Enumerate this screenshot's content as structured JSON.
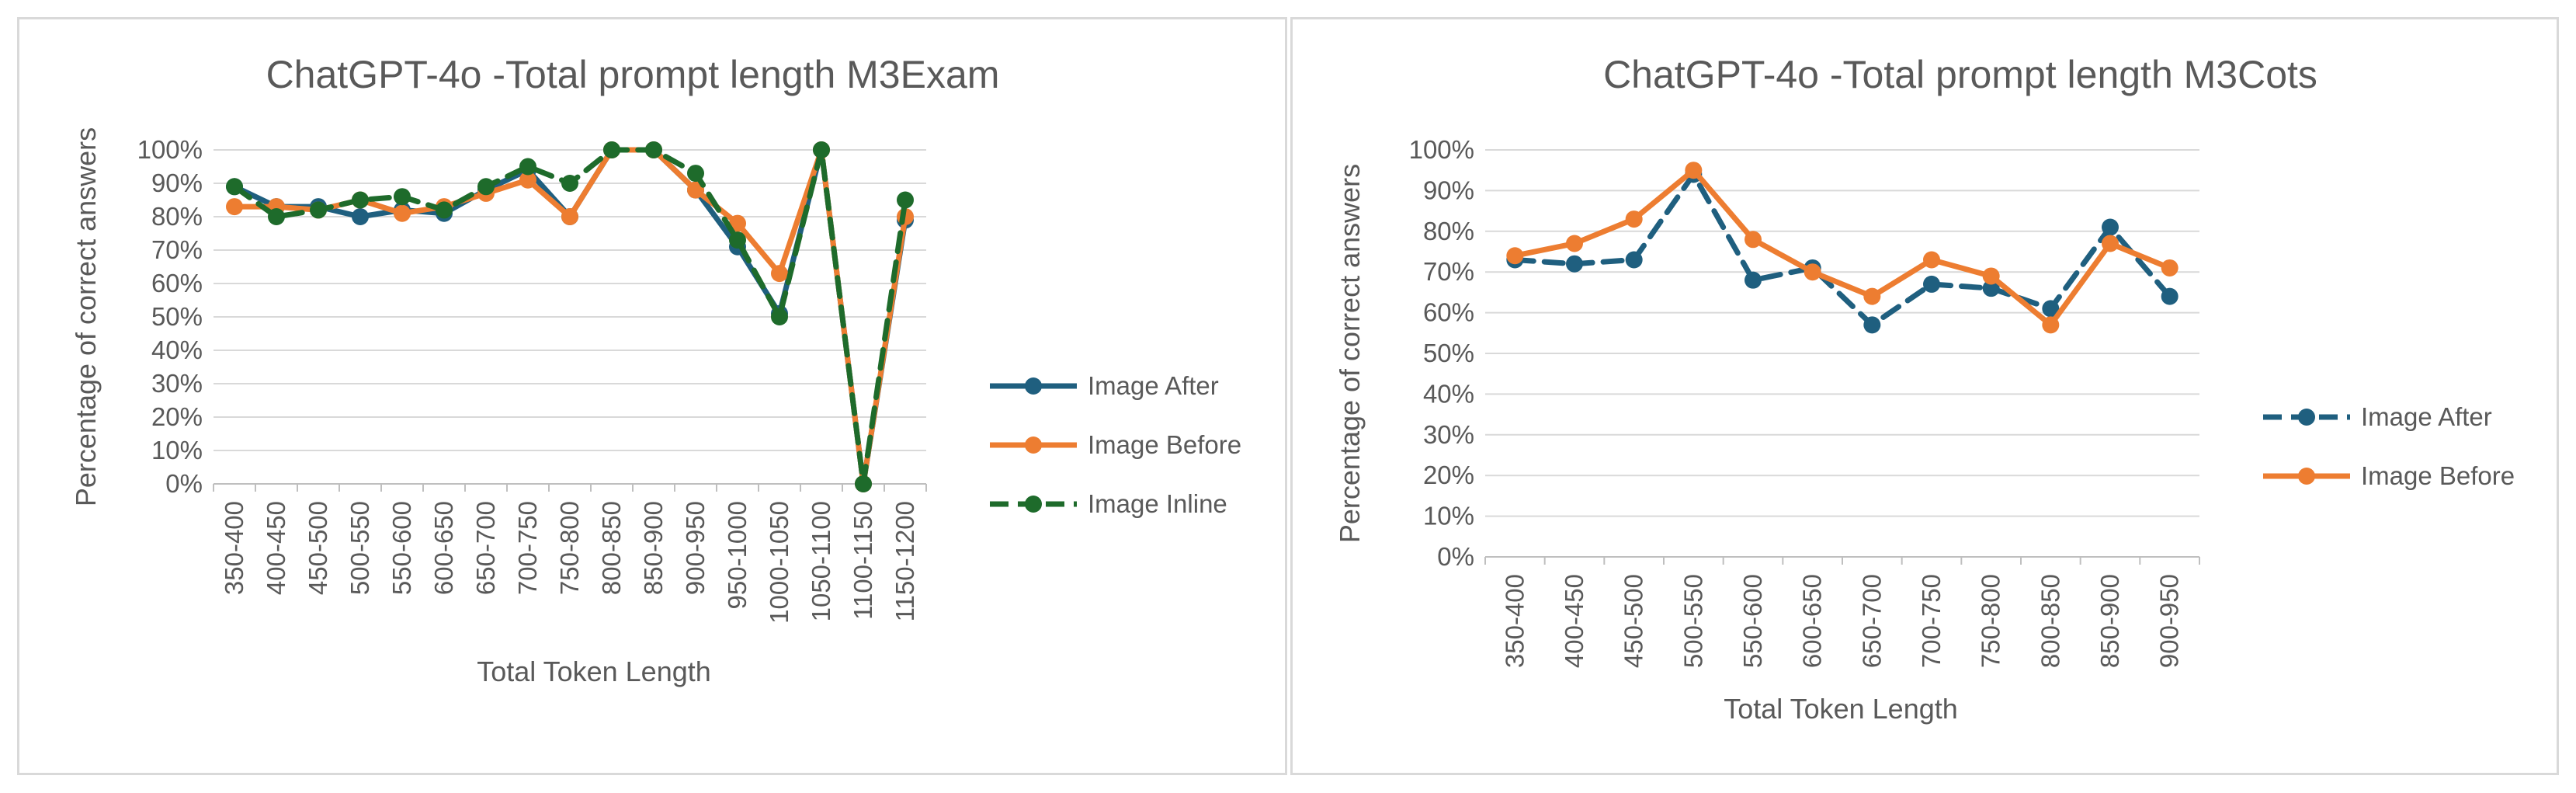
{
  "chart_data": [
    {
      "type": "line",
      "title": "ChatGPT-4o -Total prompt length M3Exam",
      "xlabel": "Total Token Length",
      "ylabel": "Percentage of correct answers",
      "categories": [
        "350-400",
        "400-450",
        "450-500",
        "500-550",
        "550-600",
        "600-650",
        "650-700",
        "700-750",
        "750-800",
        "800-850",
        "850-900",
        "900-950",
        "950-1000",
        "1000-1050",
        "1050-1100",
        "1100-1150",
        "1150-1200"
      ],
      "ylim": [
        0,
        100
      ],
      "yticks": [
        "0%",
        "10%",
        "20%",
        "30%",
        "40%",
        "50%",
        "60%",
        "70%",
        "80%",
        "90%",
        "100%"
      ],
      "grid": true,
      "legend_position": "right",
      "series": [
        {
          "name": "Image After",
          "color": "#1f5f7f",
          "dash": false,
          "values": [
            89,
            83,
            83,
            80,
            82,
            81,
            88,
            94,
            80,
            100,
            100,
            88,
            71,
            51,
            100,
            0,
            79
          ]
        },
        {
          "name": "Image Before",
          "color": "#ed7d31",
          "dash": false,
          "values": [
            83,
            83,
            82,
            85,
            81,
            83,
            87,
            91,
            80,
            100,
            100,
            88,
            78,
            63,
            100,
            0,
            80
          ]
        },
        {
          "name": "Image Inline",
          "color": "#1e6b2b",
          "dash": true,
          "values": [
            89,
            80,
            82,
            85,
            86,
            82,
            89,
            95,
            90,
            100,
            100,
            93,
            73,
            50,
            100,
            0,
            85
          ]
        }
      ]
    },
    {
      "type": "line",
      "title": "ChatGPT-4o -Total prompt length M3Cots",
      "xlabel": "Total Token Length",
      "ylabel": "Percentage of correct answers",
      "categories": [
        "350-400",
        "400-450",
        "450-500",
        "500-550",
        "550-600",
        "600-650",
        "650-700",
        "700-750",
        "750-800",
        "800-850",
        "850-900",
        "900-950"
      ],
      "ylim": [
        0,
        100
      ],
      "yticks": [
        "0%",
        "10%",
        "20%",
        "30%",
        "40%",
        "50%",
        "60%",
        "70%",
        "80%",
        "90%",
        "100%"
      ],
      "grid": true,
      "legend_position": "right",
      "series": [
        {
          "name": "Image After",
          "color": "#1f5f7f",
          "dash": true,
          "values": [
            73,
            72,
            73,
            94,
            68,
            71,
            57,
            67,
            66,
            61,
            81,
            64
          ]
        },
        {
          "name": "Image Before",
          "color": "#ed7d31",
          "dash": false,
          "values": [
            74,
            77,
            83,
            95,
            78,
            70,
            64,
            73,
            69,
            57,
            77,
            71
          ]
        }
      ]
    }
  ]
}
